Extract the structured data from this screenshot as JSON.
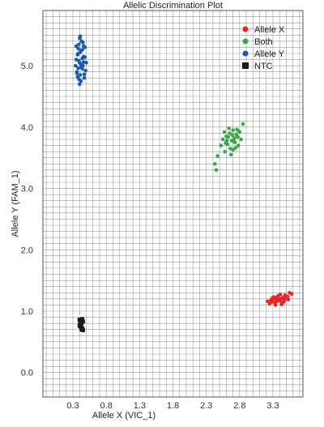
{
  "chart_data": {
    "type": "scatter",
    "title": "Allelic Discrimination Plot",
    "xlabel": "Allele X (VIC_1)",
    "ylabel": "Allele Y (FAM_1)",
    "xlim": [
      -0.15,
      3.75
    ],
    "ylim": [
      -0.4,
      5.9
    ],
    "xticks": [
      0.3,
      0.8,
      1.3,
      1.8,
      2.3,
      2.8,
      3.3
    ],
    "xtick_labels": [
      "0.3",
      "0.8",
      "1.3",
      "1.8",
      "2.3",
      "2.8",
      "3.3"
    ],
    "yticks": [
      0.0,
      1.0,
      2.0,
      3.0,
      4.0,
      5.0
    ],
    "ytick_labels": [
      "0.0",
      "1.0",
      "2.0",
      "3.0",
      "4.0",
      "5.0"
    ],
    "grid": true,
    "legend_position": "top-right",
    "series": [
      {
        "name": "Allele X",
        "color": "#e8262a",
        "marker": "circle",
        "points": [
          [
            3.28,
            1.15
          ],
          [
            3.3,
            1.18
          ],
          [
            3.32,
            1.2
          ],
          [
            3.35,
            1.22
          ],
          [
            3.38,
            1.25
          ],
          [
            3.4,
            1.17
          ],
          [
            3.42,
            1.2
          ],
          [
            3.45,
            1.22
          ],
          [
            3.33,
            1.13
          ],
          [
            3.36,
            1.16
          ],
          [
            3.39,
            1.19
          ],
          [
            3.44,
            1.14
          ],
          [
            3.47,
            1.18
          ],
          [
            3.5,
            1.21
          ],
          [
            3.25,
            1.12
          ],
          [
            3.22,
            1.16
          ],
          [
            3.37,
            1.24
          ],
          [
            3.41,
            1.27
          ],
          [
            3.48,
            1.26
          ],
          [
            3.52,
            1.24
          ],
          [
            3.55,
            1.3
          ],
          [
            3.58,
            1.28
          ],
          [
            3.31,
            1.23
          ],
          [
            3.34,
            1.1
          ],
          [
            3.29,
            1.21
          ],
          [
            3.43,
            1.11
          ],
          [
            3.46,
            1.15
          ],
          [
            3.53,
            1.19
          ],
          [
            3.27,
            1.18
          ],
          [
            3.36,
            1.21
          ]
        ]
      },
      {
        "name": "Both",
        "color": "#3aa845",
        "marker": "circle",
        "points": [
          [
            2.55,
            3.8
          ],
          [
            2.6,
            3.85
          ],
          [
            2.62,
            3.72
          ],
          [
            2.65,
            3.9
          ],
          [
            2.68,
            3.78
          ],
          [
            2.7,
            3.95
          ],
          [
            2.72,
            3.82
          ],
          [
            2.75,
            3.88
          ],
          [
            2.78,
            3.7
          ],
          [
            2.8,
            3.92
          ],
          [
            2.66,
            3.65
          ],
          [
            2.58,
            3.6
          ],
          [
            2.64,
            3.98
          ],
          [
            2.73,
            3.75
          ],
          [
            2.77,
            3.84
          ],
          [
            2.69,
            3.87
          ],
          [
            2.61,
            3.78
          ],
          [
            2.82,
            3.8
          ],
          [
            2.85,
            4.05
          ],
          [
            2.74,
            3.66
          ],
          [
            2.67,
            3.55
          ],
          [
            2.52,
            3.7
          ],
          [
            2.57,
            3.92
          ],
          [
            2.63,
            3.84
          ],
          [
            2.71,
            3.77
          ],
          [
            2.79,
            3.93
          ],
          [
            2.47,
            3.53
          ],
          [
            2.43,
            3.4
          ],
          [
            2.45,
            3.3
          ],
          [
            2.7,
            3.63
          ],
          [
            2.76,
            3.96
          ],
          [
            2.59,
            3.74
          ]
        ]
      },
      {
        "name": "Allele Y",
        "color": "#1c5aa6",
        "marker": "circle",
        "points": [
          [
            0.35,
            5.1
          ],
          [
            0.38,
            5.2
          ],
          [
            0.4,
            5.05
          ],
          [
            0.42,
            5.25
          ],
          [
            0.44,
            4.95
          ],
          [
            0.46,
            5.15
          ],
          [
            0.48,
            5.3
          ],
          [
            0.36,
            4.9
          ],
          [
            0.39,
            5.35
          ],
          [
            0.41,
            4.85
          ],
          [
            0.43,
            5.4
          ],
          [
            0.45,
            5.0
          ],
          [
            0.37,
            5.18
          ],
          [
            0.47,
            4.8
          ],
          [
            0.4,
            5.45
          ],
          [
            0.42,
            4.75
          ],
          [
            0.38,
            5.28
          ],
          [
            0.44,
            5.12
          ],
          [
            0.5,
            5.05
          ],
          [
            0.34,
            5.0
          ],
          [
            0.36,
            4.88
          ],
          [
            0.46,
            5.32
          ],
          [
            0.49,
            4.92
          ],
          [
            0.41,
            5.22
          ],
          [
            0.43,
            4.98
          ],
          [
            0.39,
            5.08
          ],
          [
            0.45,
            5.38
          ],
          [
            0.37,
            4.82
          ],
          [
            0.48,
            5.14
          ],
          [
            0.4,
            4.7
          ],
          [
            0.42,
            5.02
          ],
          [
            0.44,
            5.26
          ],
          [
            0.35,
            5.32
          ],
          [
            0.47,
            4.86
          ],
          [
            0.38,
            4.96
          ],
          [
            0.41,
            5.48
          ],
          [
            0.46,
            5.06
          ],
          [
            0.39,
            4.78
          ]
        ]
      },
      {
        "name": "NTC",
        "color": "#1a1a1a",
        "marker": "square",
        "points": [
          [
            0.4,
            0.86
          ],
          [
            0.42,
            0.84
          ],
          [
            0.44,
            0.87
          ],
          [
            0.41,
            0.82
          ],
          [
            0.43,
            0.8
          ],
          [
            0.45,
            0.83
          ],
          [
            0.4,
            0.76
          ],
          [
            0.42,
            0.74
          ],
          [
            0.44,
            0.72
          ],
          [
            0.43,
            0.7
          ],
          [
            0.45,
            0.69
          ],
          [
            0.41,
            0.78
          ]
        ]
      }
    ]
  }
}
